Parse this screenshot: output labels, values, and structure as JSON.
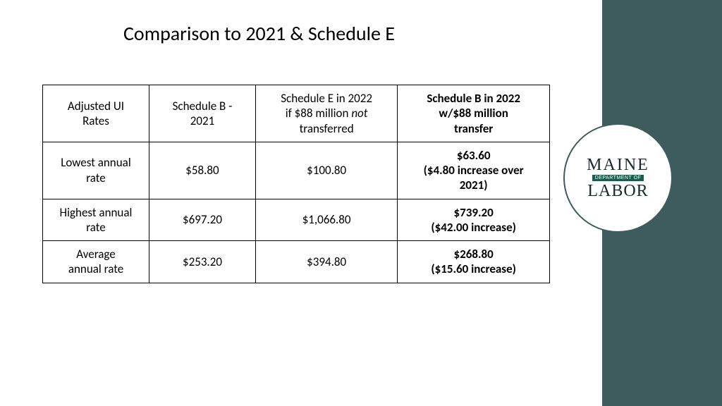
{
  "title": "Comparison to 2021 & Schedule E",
  "sidebar_color": "#3e5b5d",
  "background_color": "#ffffff",
  "logo": {
    "line1": "MAINE",
    "tag": "DEPARTMENT OF",
    "line2": "LABOR",
    "circle_border_color": "#3e5b5d",
    "tag_bg": "#1e5b4f"
  },
  "table": {
    "border_color": "#000000",
    "font_size": 17,
    "columns": [
      {
        "html": "Adjusted UI\nRates",
        "bold": false
      },
      {
        "html": "Schedule B -\n2021",
        "bold": false
      },
      {
        "html": "Schedule E in 2022\nif $88 million <i>not</i>\ntransferred",
        "bold": false
      },
      {
        "html": "Schedule B in 2022\nw/$88 million\ntransfer",
        "bold": true
      }
    ],
    "rows": [
      {
        "label": "Lowest annual\nrate",
        "c1": "$58.80",
        "c2": "$100.80",
        "c3": "$63.60\n($4.80 increase over\n2021)"
      },
      {
        "label": "Highest annual\nrate",
        "c1": "$697.20",
        "c2": "$1,066.80",
        "c3": "$739.20\n($42.00 increase)"
      },
      {
        "label": "Average\nannual rate",
        "c1": "$253.20",
        "c2": "$394.80",
        "c3": "$268.80\n($15.60 increase)"
      }
    ]
  }
}
